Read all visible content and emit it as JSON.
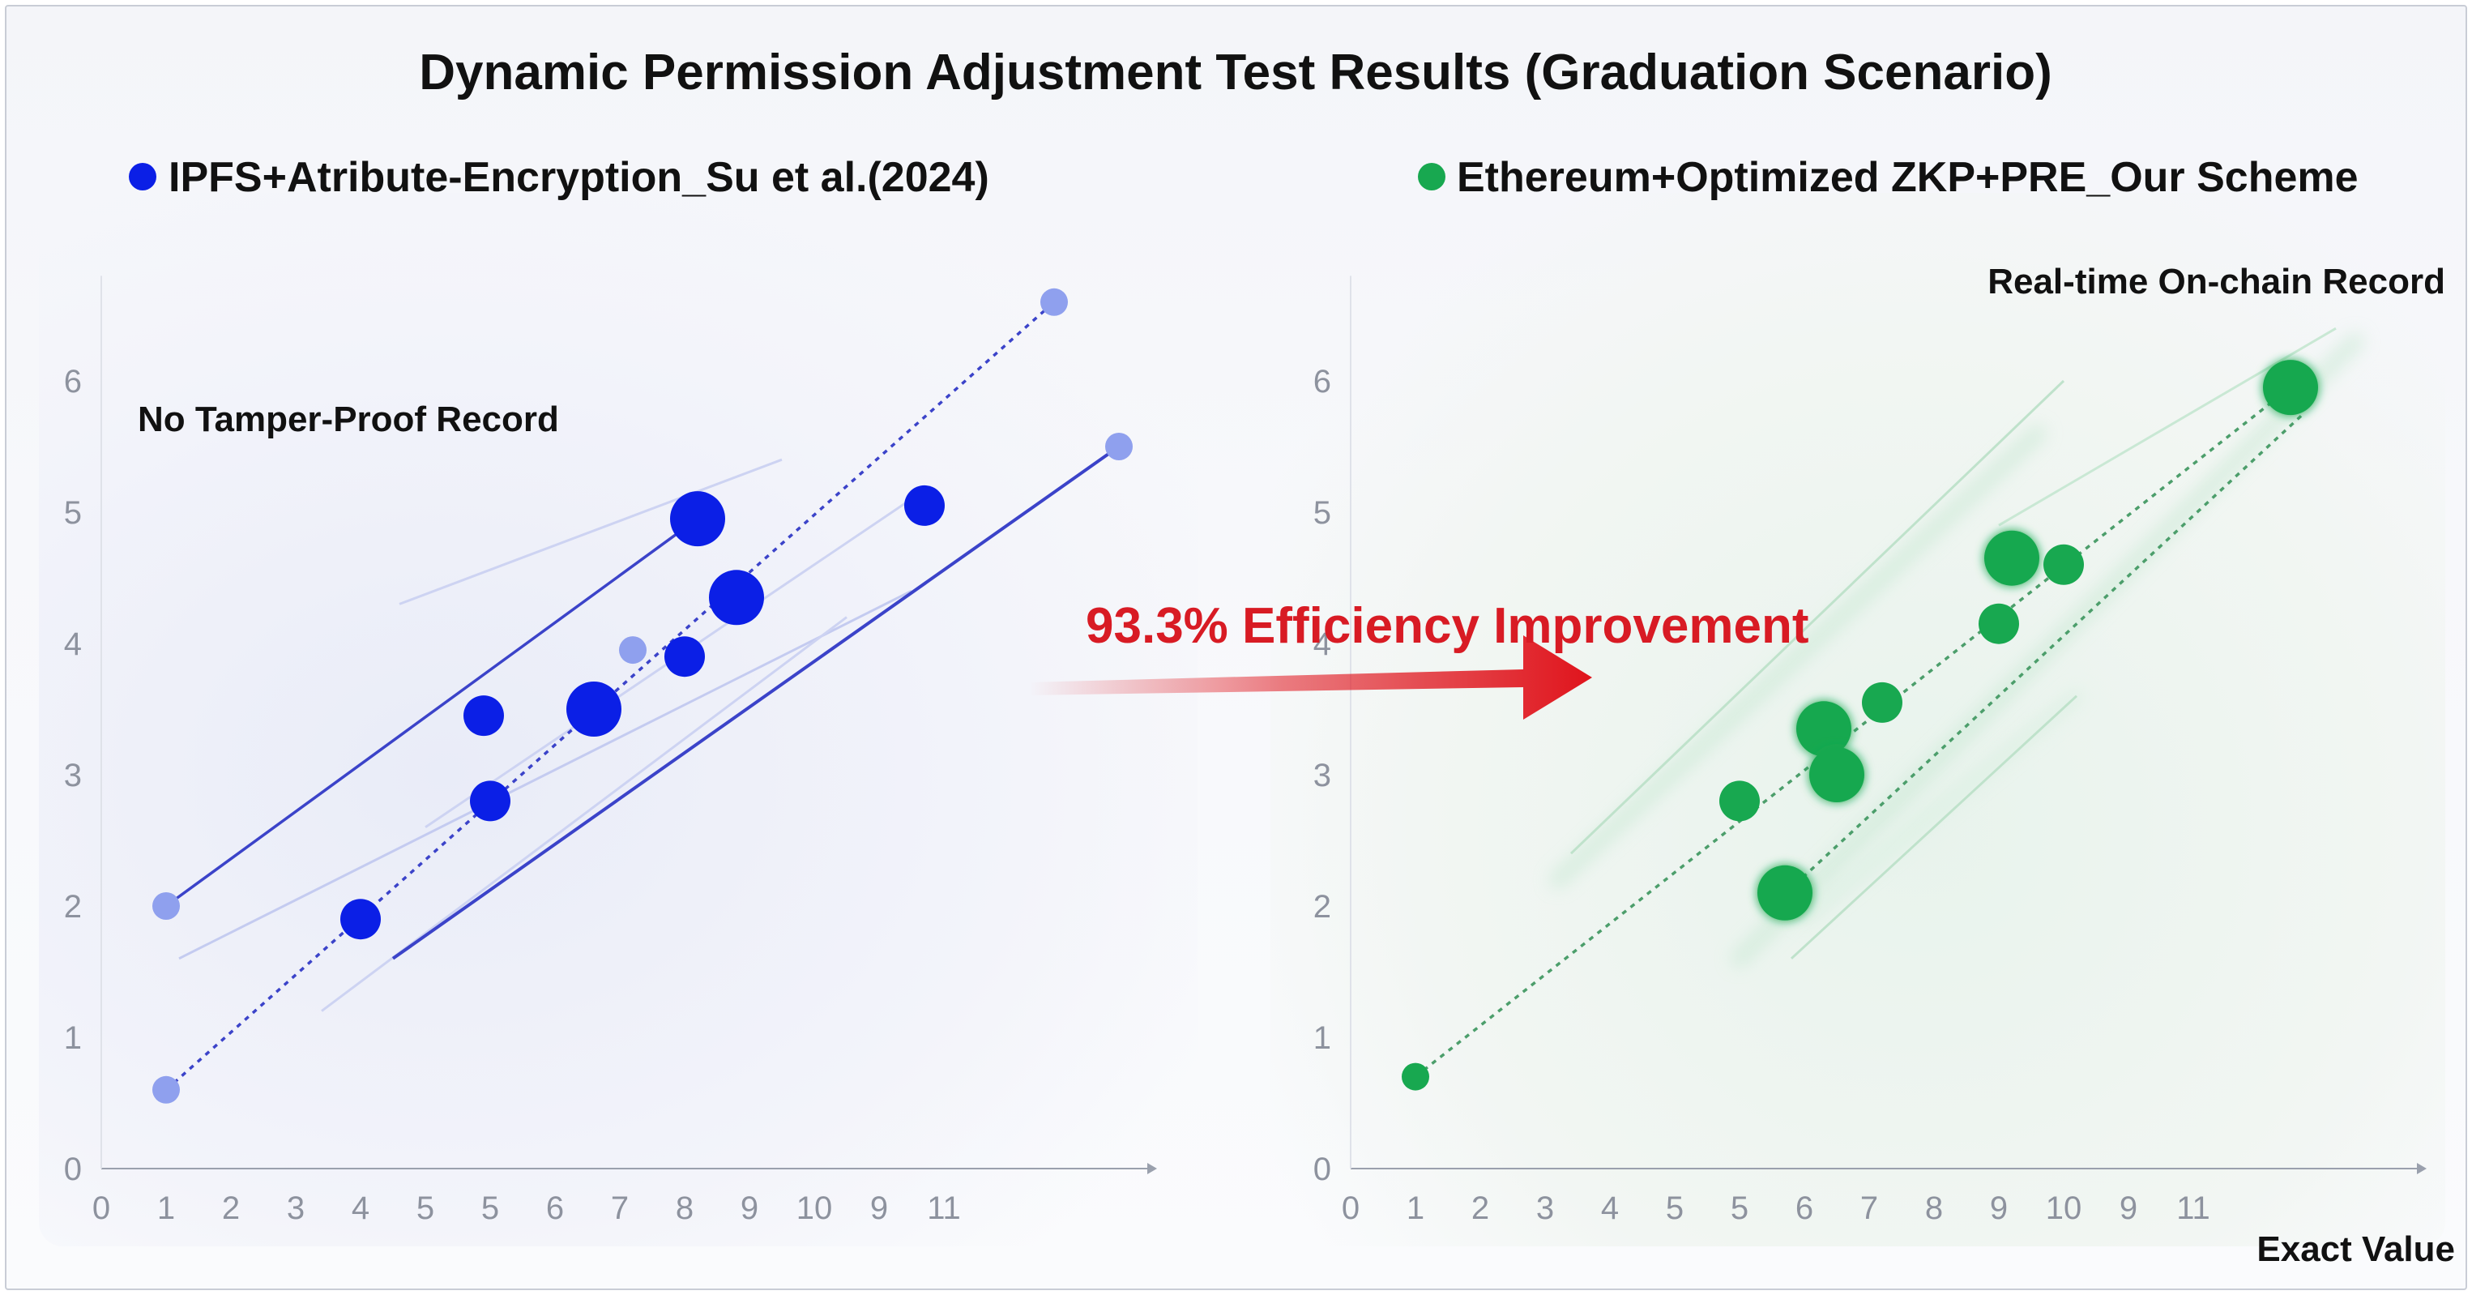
{
  "chart_data": {
    "type": "scatter",
    "title": "Dynamic Permission Adjustment Test Results (Graduation Scenario)",
    "x_tick_labels": [
      "0",
      "1",
      "2",
      "3",
      "4",
      "5",
      "5",
      "6",
      "7",
      "8",
      "9",
      "10",
      "9",
      "11"
    ],
    "y_ticks": [
      0,
      1,
      2,
      3,
      4,
      5,
      6
    ],
    "y_tick_labels": [
      "0",
      "1",
      "2",
      "3",
      "4",
      "5",
      "6"
    ],
    "ylim": [
      0,
      6.8
    ],
    "grid": false,
    "legend_placement": "top",
    "xlabel": "Exact Value",
    "center_annotation": "93.3% Efficiency Improvement",
    "colors": {
      "left": "#0b1fe6",
      "left_light": "#8fa0ee",
      "right": "#18a850",
      "arrow": "#e0141c"
    },
    "panels": [
      {
        "legend": "IPFS+Atribute-Encryption_Su et al.(2024)",
        "annotation": "No Tamper-Proof Record",
        "points": [
          {
            "x": 1.0,
            "y": 2.0,
            "size": "small",
            "faded": true
          },
          {
            "x": 1.0,
            "y": 0.6,
            "size": "small",
            "faded": true
          },
          {
            "x": 4.0,
            "y": 1.9,
            "size": "medium",
            "faded": false
          },
          {
            "x": 5.9,
            "y": 3.45,
            "size": "medium",
            "faded": false
          },
          {
            "x": 6.0,
            "y": 2.8,
            "size": "medium",
            "faded": false
          },
          {
            "x": 7.6,
            "y": 3.5,
            "size": "large",
            "faded": false
          },
          {
            "x": 8.2,
            "y": 3.95,
            "size": "small",
            "faded": true
          },
          {
            "x": 9.0,
            "y": 3.9,
            "size": "medium",
            "faded": false
          },
          {
            "x": 9.2,
            "y": 4.95,
            "size": "large",
            "faded": false
          },
          {
            "x": 9.8,
            "y": 4.35,
            "size": "large",
            "faded": false
          },
          {
            "x": 12.7,
            "y": 5.05,
            "size": "medium",
            "faded": false
          },
          {
            "x": 14.7,
            "y": 6.6,
            "size": "small",
            "faded": true
          },
          {
            "x": 15.7,
            "y": 5.5,
            "size": "small",
            "faded": true
          }
        ]
      },
      {
        "legend": "Ethereum+Optimized ZKP+PRE_Our Scheme",
        "annotation": "Real-time On-chain Record",
        "points": [
          {
            "x": 1.0,
            "y": 0.7,
            "size": "small"
          },
          {
            "x": 6.0,
            "y": 2.8,
            "size": "medium"
          },
          {
            "x": 6.7,
            "y": 2.1,
            "size": "large"
          },
          {
            "x": 7.3,
            "y": 3.35,
            "size": "large"
          },
          {
            "x": 7.5,
            "y": 3.0,
            "size": "large"
          },
          {
            "x": 8.2,
            "y": 3.55,
            "size": "medium"
          },
          {
            "x": 10.0,
            "y": 4.15,
            "size": "medium"
          },
          {
            "x": 10.2,
            "y": 4.65,
            "size": "large"
          },
          {
            "x": 11.0,
            "y": 4.6,
            "size": "medium"
          },
          {
            "x": 14.5,
            "y": 5.95,
            "size": "large"
          }
        ]
      }
    ]
  }
}
